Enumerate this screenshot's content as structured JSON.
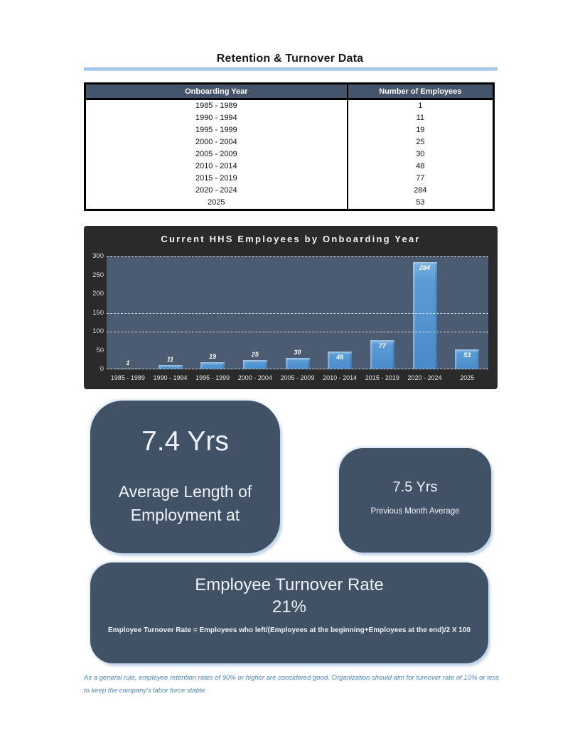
{
  "page": {
    "title": "Retention & Turnover Data"
  },
  "table": {
    "columns": [
      "Onboarding Year",
      "Number of Employees"
    ],
    "rows": [
      [
        "1985 - 1989",
        "1"
      ],
      [
        "1990 - 1994",
        "11"
      ],
      [
        "1995 - 1999",
        "19"
      ],
      [
        "2000 - 2004",
        "25"
      ],
      [
        "2005 - 2009",
        "30"
      ],
      [
        "2010 - 2014",
        "48"
      ],
      [
        "2015 - 2019",
        "77"
      ],
      [
        "2020 - 2024",
        "284"
      ],
      [
        "2025",
        "53"
      ]
    ]
  },
  "chart_data": {
    "type": "bar",
    "title": "Current HHS Employees by Onboarding Year",
    "categories": [
      "1985 - 1989",
      "1990 - 1994",
      "1995 - 1999",
      "2000 - 2004",
      "2005 - 2009",
      "2010 - 2014",
      "2015 - 2019",
      "2020 - 2024",
      "2025"
    ],
    "values": [
      1,
      11,
      19,
      25,
      30,
      48,
      77,
      284,
      53
    ],
    "xlabel": "",
    "ylabel": "",
    "ylim": [
      0,
      300
    ],
    "yticks": [
      0,
      50,
      100,
      150,
      200,
      250,
      300
    ],
    "gridlines": {
      "style": "dashed",
      "visible_at": [
        300,
        150,
        100,
        0
      ]
    },
    "legend": "none",
    "bar_color": "#5b9bd5",
    "plot_bg": "#4b5c72",
    "frame_bg": "#2a2a2a",
    "label_style": "white italic on/above bars"
  },
  "cards": {
    "avg_length": {
      "value": "7.4 Yrs",
      "label": "Average Length of Employment at"
    },
    "prev_month": {
      "value": "7.5 Yrs",
      "label": "Previous Month Average"
    },
    "turnover": {
      "title": "Employee Turnover Rate",
      "value": "21%",
      "formula": "Employee Turnover Rate = Employees who left/(Employees at the beginning+Employees at the end)/2 X 100"
    }
  },
  "footnote": "As a general rule, employee retention rates of 90% or higher are considered good. Organization should aim for turnover rate of 10% or less to keep the company's labor force stable.",
  "colors": {
    "accent_blue": "#5b9bd5",
    "table_header_bg": "#44546a",
    "card_bg": "#415267",
    "card_glow": "#c3d6ea",
    "chart_frame_bg": "#2a2a2a",
    "plot_bg": "#4b5c72",
    "title_rule_blue": "#a9cbe9",
    "footnote_blue": "#4e86c6"
  }
}
